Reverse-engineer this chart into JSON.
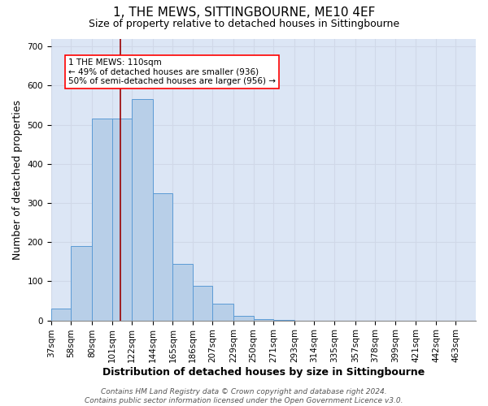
{
  "title": "1, THE MEWS, SITTINGBOURNE, ME10 4EF",
  "subtitle": "Size of property relative to detached houses in Sittingbourne",
  "xlabel": "Distribution of detached houses by size in Sittingbourne",
  "ylabel": "Number of detached properties",
  "bar_values": [
    30,
    190,
    515,
    515,
    565,
    325,
    145,
    88,
    42,
    12,
    3,
    2,
    0,
    0,
    0,
    0,
    0,
    0,
    0,
    0,
    0
  ],
  "bin_edges": [
    37,
    58,
    80,
    101,
    122,
    144,
    165,
    186,
    207,
    229,
    250,
    271,
    293,
    314,
    335,
    357,
    378,
    399,
    421,
    442,
    463,
    484
  ],
  "tick_labels": [
    "37sqm",
    "58sqm",
    "80sqm",
    "101sqm",
    "122sqm",
    "144sqm",
    "165sqm",
    "186sqm",
    "207sqm",
    "229sqm",
    "250sqm",
    "271sqm",
    "293sqm",
    "314sqm",
    "335sqm",
    "357sqm",
    "378sqm",
    "399sqm",
    "421sqm",
    "442sqm",
    "463sqm"
  ],
  "bar_color": "#b8cfe8",
  "bar_edge_color": "#5b9bd5",
  "grid_color": "#d0d8e8",
  "background_color": "#dce6f5",
  "property_size": 110,
  "red_line_color": "#990000",
  "annotation_line1": "1 THE MEWS: 110sqm",
  "annotation_line2": "← 49% of detached houses are smaller (936)",
  "annotation_line3": "50% of semi-detached houses are larger (956) →",
  "annotation_box_color": "white",
  "annotation_border_color": "red",
  "ylim": [
    0,
    720
  ],
  "yticks": [
    0,
    100,
    200,
    300,
    400,
    500,
    600,
    700
  ],
  "footer_text": "Contains HM Land Registry data © Crown copyright and database right 2024.\nContains public sector information licensed under the Open Government Licence v3.0.",
  "title_fontsize": 11,
  "subtitle_fontsize": 9,
  "axis_label_fontsize": 9,
  "tick_fontsize": 7.5,
  "footer_fontsize": 6.5
}
